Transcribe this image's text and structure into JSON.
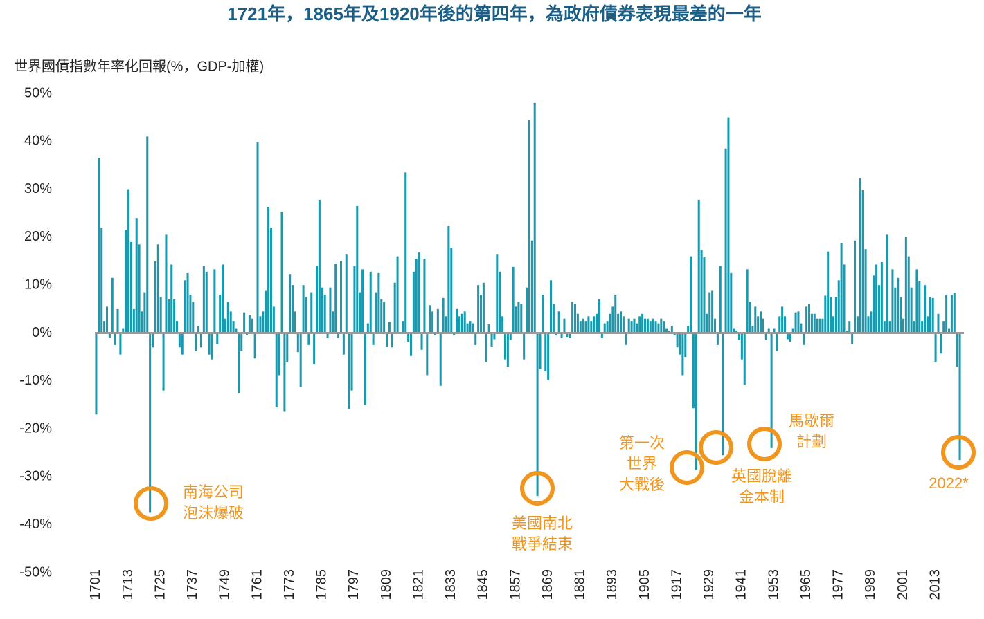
{
  "chart_data": {
    "type": "bar",
    "title": "1721年，1865年及1920年後的第四年，為政府債券表現最差的一年",
    "y_label": "世界國債指數年率化回報(%，GDP-加權)",
    "color": "#1899ae",
    "x": [
      1701,
      1702,
      1703,
      1704,
      1705,
      1706,
      1707,
      1708,
      1709,
      1710,
      1711,
      1712,
      1713,
      1714,
      1715,
      1716,
      1717,
      1718,
      1719,
      1720,
      1721,
      1722,
      1723,
      1724,
      1725,
      1726,
      1727,
      1728,
      1729,
      1730,
      1731,
      1732,
      1733,
      1734,
      1735,
      1736,
      1737,
      1738,
      1739,
      1740,
      1741,
      1742,
      1743,
      1744,
      1745,
      1746,
      1747,
      1748,
      1749,
      1750,
      1751,
      1752,
      1753,
      1754,
      1755,
      1756,
      1757,
      1758,
      1759,
      1760,
      1761,
      1762,
      1763,
      1764,
      1765,
      1766,
      1767,
      1768,
      1769,
      1770,
      1771,
      1772,
      1773,
      1774,
      1775,
      1776,
      1777,
      1778,
      1779,
      1780,
      1781,
      1782,
      1783,
      1784,
      1785,
      1786,
      1787,
      1788,
      1789,
      1790,
      1791,
      1792,
      1793,
      1794,
      1795,
      1796,
      1797,
      1798,
      1799,
      1800,
      1801,
      1802,
      1803,
      1804,
      1805,
      1806,
      1807,
      1808,
      1809,
      1810,
      1811,
      1812,
      1813,
      1814,
      1815,
      1816,
      1817,
      1818,
      1819,
      1820,
      1821,
      1822,
      1823,
      1824,
      1825,
      1826,
      1827,
      1828,
      1829,
      1830,
      1831,
      1832,
      1833,
      1834,
      1835,
      1836,
      1837,
      1838,
      1839,
      1840,
      1841,
      1842,
      1843,
      1844,
      1845,
      1846,
      1847,
      1848,
      1849,
      1850,
      1851,
      1852,
      1853,
      1854,
      1855,
      1856,
      1857,
      1858,
      1859,
      1860,
      1861,
      1862,
      1863,
      1864,
      1865,
      1866,
      1867,
      1868,
      1869,
      1870,
      1871,
      1872,
      1873,
      1874,
      1875,
      1876,
      1877,
      1878,
      1879,
      1880,
      1881,
      1882,
      1883,
      1884,
      1885,
      1886,
      1887,
      1888,
      1889,
      1890,
      1891,
      1892,
      1893,
      1894,
      1895,
      1896,
      1897,
      1898,
      1899,
      1900,
      1901,
      1902,
      1903,
      1904,
      1905,
      1906,
      1907,
      1908,
      1909,
      1910,
      1911,
      1912,
      1913,
      1914,
      1915,
      1916,
      1917,
      1918,
      1919,
      1920,
      1921,
      1922,
      1923,
      1924,
      1925,
      1926,
      1927,
      1928,
      1929,
      1930,
      1931,
      1932,
      1933,
      1934,
      1935,
      1936,
      1937,
      1938,
      1939,
      1940,
      1941,
      1942,
      1943,
      1944,
      1945,
      1946,
      1947,
      1948,
      1949,
      1950,
      1951,
      1952,
      1953,
      1954,
      1955,
      1956,
      1957,
      1958,
      1959,
      1960,
      1961,
      1962,
      1963,
      1964,
      1965,
      1966,
      1967,
      1968,
      1969,
      1970,
      1971,
      1972,
      1973,
      1974,
      1975,
      1976,
      1977,
      1978,
      1979,
      1980,
      1981,
      1982,
      1983,
      1984,
      1985,
      1986,
      1987,
      1988,
      1989,
      1990,
      1991,
      1992,
      1993,
      1994,
      1995,
      1996,
      1997,
      1998,
      1999,
      2000,
      2001,
      2002,
      2003,
      2004,
      2005,
      2006,
      2007,
      2008,
      2009,
      2010,
      2011,
      2012,
      2013,
      2014,
      2015,
      2016,
      2017,
      2018,
      2019,
      2020,
      2021,
      2022
    ],
    "values": [
      -17,
      36.5,
      22,
      2.5,
      5.5,
      -1,
      11.5,
      -2.5,
      5,
      -4.5,
      1,
      21.5,
      30,
      19,
      5,
      24,
      18.5,
      4.5,
      8.5,
      41,
      -37.5,
      -3,
      15,
      18.5,
      7.5,
      -12,
      20.5,
      7,
      14.3,
      7,
      2.5,
      -3,
      -4.5,
      11,
      12.5,
      8,
      6.5,
      -3.8,
      1.5,
      -3,
      14,
      12.8,
      -4.5,
      -5.5,
      13.3,
      -2.3,
      8,
      14.3,
      3,
      6.5,
      4.5,
      2.5,
      1,
      -12.5,
      -3.8,
      4.3,
      -0.5,
      3.8,
      3,
      -5.3,
      39.8,
      3.5,
      4.5,
      8.8,
      26.3,
      22,
      5.5,
      -15.5,
      -8.8,
      25.2,
      -16.3,
      -6,
      12.3,
      10,
      4.5,
      -4,
      -11.3,
      10,
      7.5,
      -2.5,
      8.5,
      -6.5,
      14,
      27.8,
      9.5,
      8,
      -1,
      9.5,
      4.5,
      14.5,
      -1,
      15,
      -4.5,
      16.5,
      -15.8,
      -12,
      14,
      26.5,
      8.5,
      13.3,
      -15,
      2,
      12.8,
      -2.5,
      8.5,
      12.5,
      7,
      6.5,
      -2.8,
      2.3,
      -3,
      10.5,
      16,
      0,
      2.5,
      33.5,
      -1.8,
      -4.8,
      12.8,
      15.5,
      16.8,
      -3.5,
      15.5,
      -8.8,
      5.8,
      4.5,
      -0.5,
      5,
      -11,
      7.3,
      3.5,
      22.3,
      17.8,
      -0.5,
      5,
      3.5,
      4,
      4.5,
      2,
      2.5,
      2,
      -2.5,
      10,
      8,
      10.5,
      -6,
      1.8,
      -2.8,
      -1.3,
      16.5,
      12.8,
      3.5,
      -5.5,
      -7,
      -1.5,
      13.8,
      5.5,
      6.5,
      6,
      -5.5,
      9.5,
      44.5,
      19.3,
      48,
      -34,
      -7.5,
      8,
      -8,
      -9.8,
      11,
      6,
      -0.5,
      4.5,
      -1,
      3,
      -0.8,
      -1,
      6.5,
      6,
      4,
      2.5,
      3,
      2.5,
      3.5,
      2.5,
      3.5,
      4,
      7,
      -1,
      2,
      2.5,
      4,
      5.5,
      8,
      4,
      4.5,
      3.5,
      -2.5,
      3,
      2.5,
      3,
      2,
      3.5,
      4,
      3,
      3,
      2.5,
      3,
      2.5,
      2,
      3,
      2.5,
      1,
      0.5,
      1.5,
      -0.5,
      -3,
      -4.5,
      -8.8,
      -5,
      1.5,
      16,
      -15.7,
      -28.5,
      27.8,
      17.3,
      15.8,
      4,
      8.5,
      8.8,
      3,
      -2.5,
      14,
      -25.5,
      38.5,
      45,
      12.5,
      1,
      0.5,
      -1.5,
      -5.5,
      -10.8,
      13.3,
      6.5,
      1.5,
      5.5,
      3.5,
      4.5,
      3,
      -1.5,
      1,
      -24,
      1,
      -3.8,
      3.5,
      5.5,
      3.5,
      -1.3,
      -1.8,
      1,
      4.3,
      4.5,
      2,
      -2.5,
      5.5,
      6,
      4,
      4,
      3,
      3,
      3,
      7.8,
      17,
      7.5,
      3.5,
      7.5,
      11,
      18.8,
      14.3,
      0.5,
      2.5,
      -2.3,
      19.3,
      3.5,
      32.3,
      29.8,
      17.5,
      3.5,
      4.5,
      12,
      14.3,
      10,
      14.8,
      2.5,
      20.5,
      2.5,
      13.3,
      9.5,
      11.5,
      7.5,
      3,
      20,
      16,
      9.5,
      2.5,
      13.3,
      10.8,
      2.5,
      10,
      3.5,
      7.5,
      7.3,
      -6,
      4,
      -4.3,
      2.5,
      8,
      1,
      8,
      8.3,
      -7,
      -26.5
    ],
    "xlim": [
      1700.5,
      2022.5
    ],
    "xticks": [
      1701,
      1713,
      1725,
      1737,
      1749,
      1761,
      1773,
      1785,
      1797,
      1809,
      1821,
      1833,
      1845,
      1857,
      1869,
      1881,
      1893,
      1905,
      1917,
      1929,
      1941,
      1953,
      1965,
      1977,
      1989,
      2001,
      2013
    ],
    "ylim": [
      -50,
      50
    ],
    "yticks": [
      {
        "value": 50,
        "label": "50%"
      },
      {
        "value": 40,
        "label": "40%"
      },
      {
        "value": 30,
        "label": "30%"
      },
      {
        "value": 20,
        "label": "20%"
      },
      {
        "value": 10,
        "label": "10%"
      },
      {
        "value": 0,
        "label": "0%"
      },
      {
        "value": -10,
        "label": "-10%"
      },
      {
        "value": -20,
        "label": "-20%"
      },
      {
        "value": -30,
        "label": "-30%"
      },
      {
        "value": -40,
        "label": "-40%"
      },
      {
        "value": -50,
        "label": "-50%"
      }
    ],
    "grid": false,
    "annotations": [
      {
        "lines": [
          "南海公司",
          "泡沫爆破"
        ]
      },
      {
        "lines": [
          "美國南北",
          "戰爭結束"
        ]
      },
      {
        "lines": [
          "第一次",
          "世界",
          "大戰後"
        ]
      },
      {
        "lines": [
          "英國脫離",
          "金本制"
        ]
      },
      {
        "lines": [
          "馬歇爾",
          "計劃"
        ]
      },
      {
        "lines": [
          "2022*"
        ]
      }
    ]
  }
}
